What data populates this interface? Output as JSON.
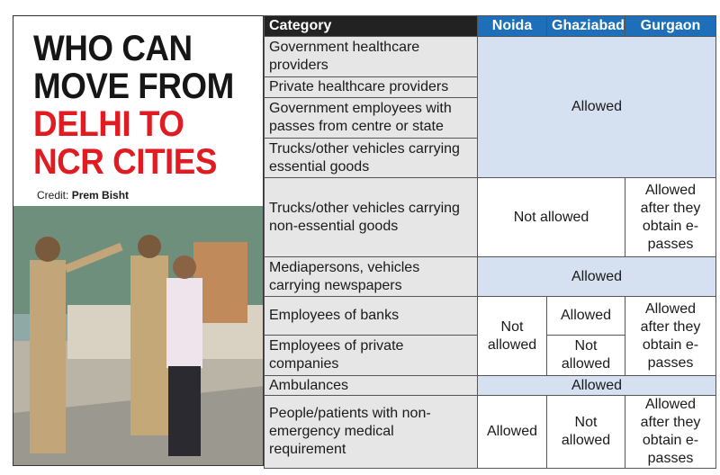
{
  "header": {
    "title_lines": [
      "WHO CAN",
      "MOVE FROM"
    ],
    "highlight_lines": [
      "DELHI TO",
      "NCR CITIES"
    ],
    "credit_label": "Credit:",
    "credit_name": "Prem Bisht"
  },
  "table": {
    "columns": [
      "Category",
      "Noida",
      "Ghaziabad",
      "Gurgaon"
    ],
    "rows": [
      {
        "category": "Government healthcare providers",
        "cells": [
          "Allowed"
        ]
      },
      {
        "category": "Private healthcare providers",
        "cells": []
      },
      {
        "category": "Government employees with passes from centre or state",
        "cells": []
      },
      {
        "category": "Trucks/other vehicles carrying essential goods",
        "cells": []
      },
      {
        "category": "Trucks/other vehicles carrying non-essential goods",
        "cells": [
          "Not allowed",
          "Allowed after they obtain e-passes"
        ]
      },
      {
        "category": "Mediapersons, vehicles carrying newspapers",
        "cells": [
          "Allowed"
        ]
      },
      {
        "category": "Employees of banks",
        "cells": [
          "Not allowed",
          "Allowed",
          "Allowed after they obtain e-passes"
        ]
      },
      {
        "category": "Employees of private companies",
        "cells": [
          "Not allowed"
        ]
      },
      {
        "category": "Ambulances",
        "cells": [
          "Allowed"
        ]
      },
      {
        "category": "People/patients with non-emergency medical requirement",
        "cells": [
          "Allowed",
          "Not allowed",
          "Allowed after they obtain e-passes"
        ]
      }
    ]
  }
}
